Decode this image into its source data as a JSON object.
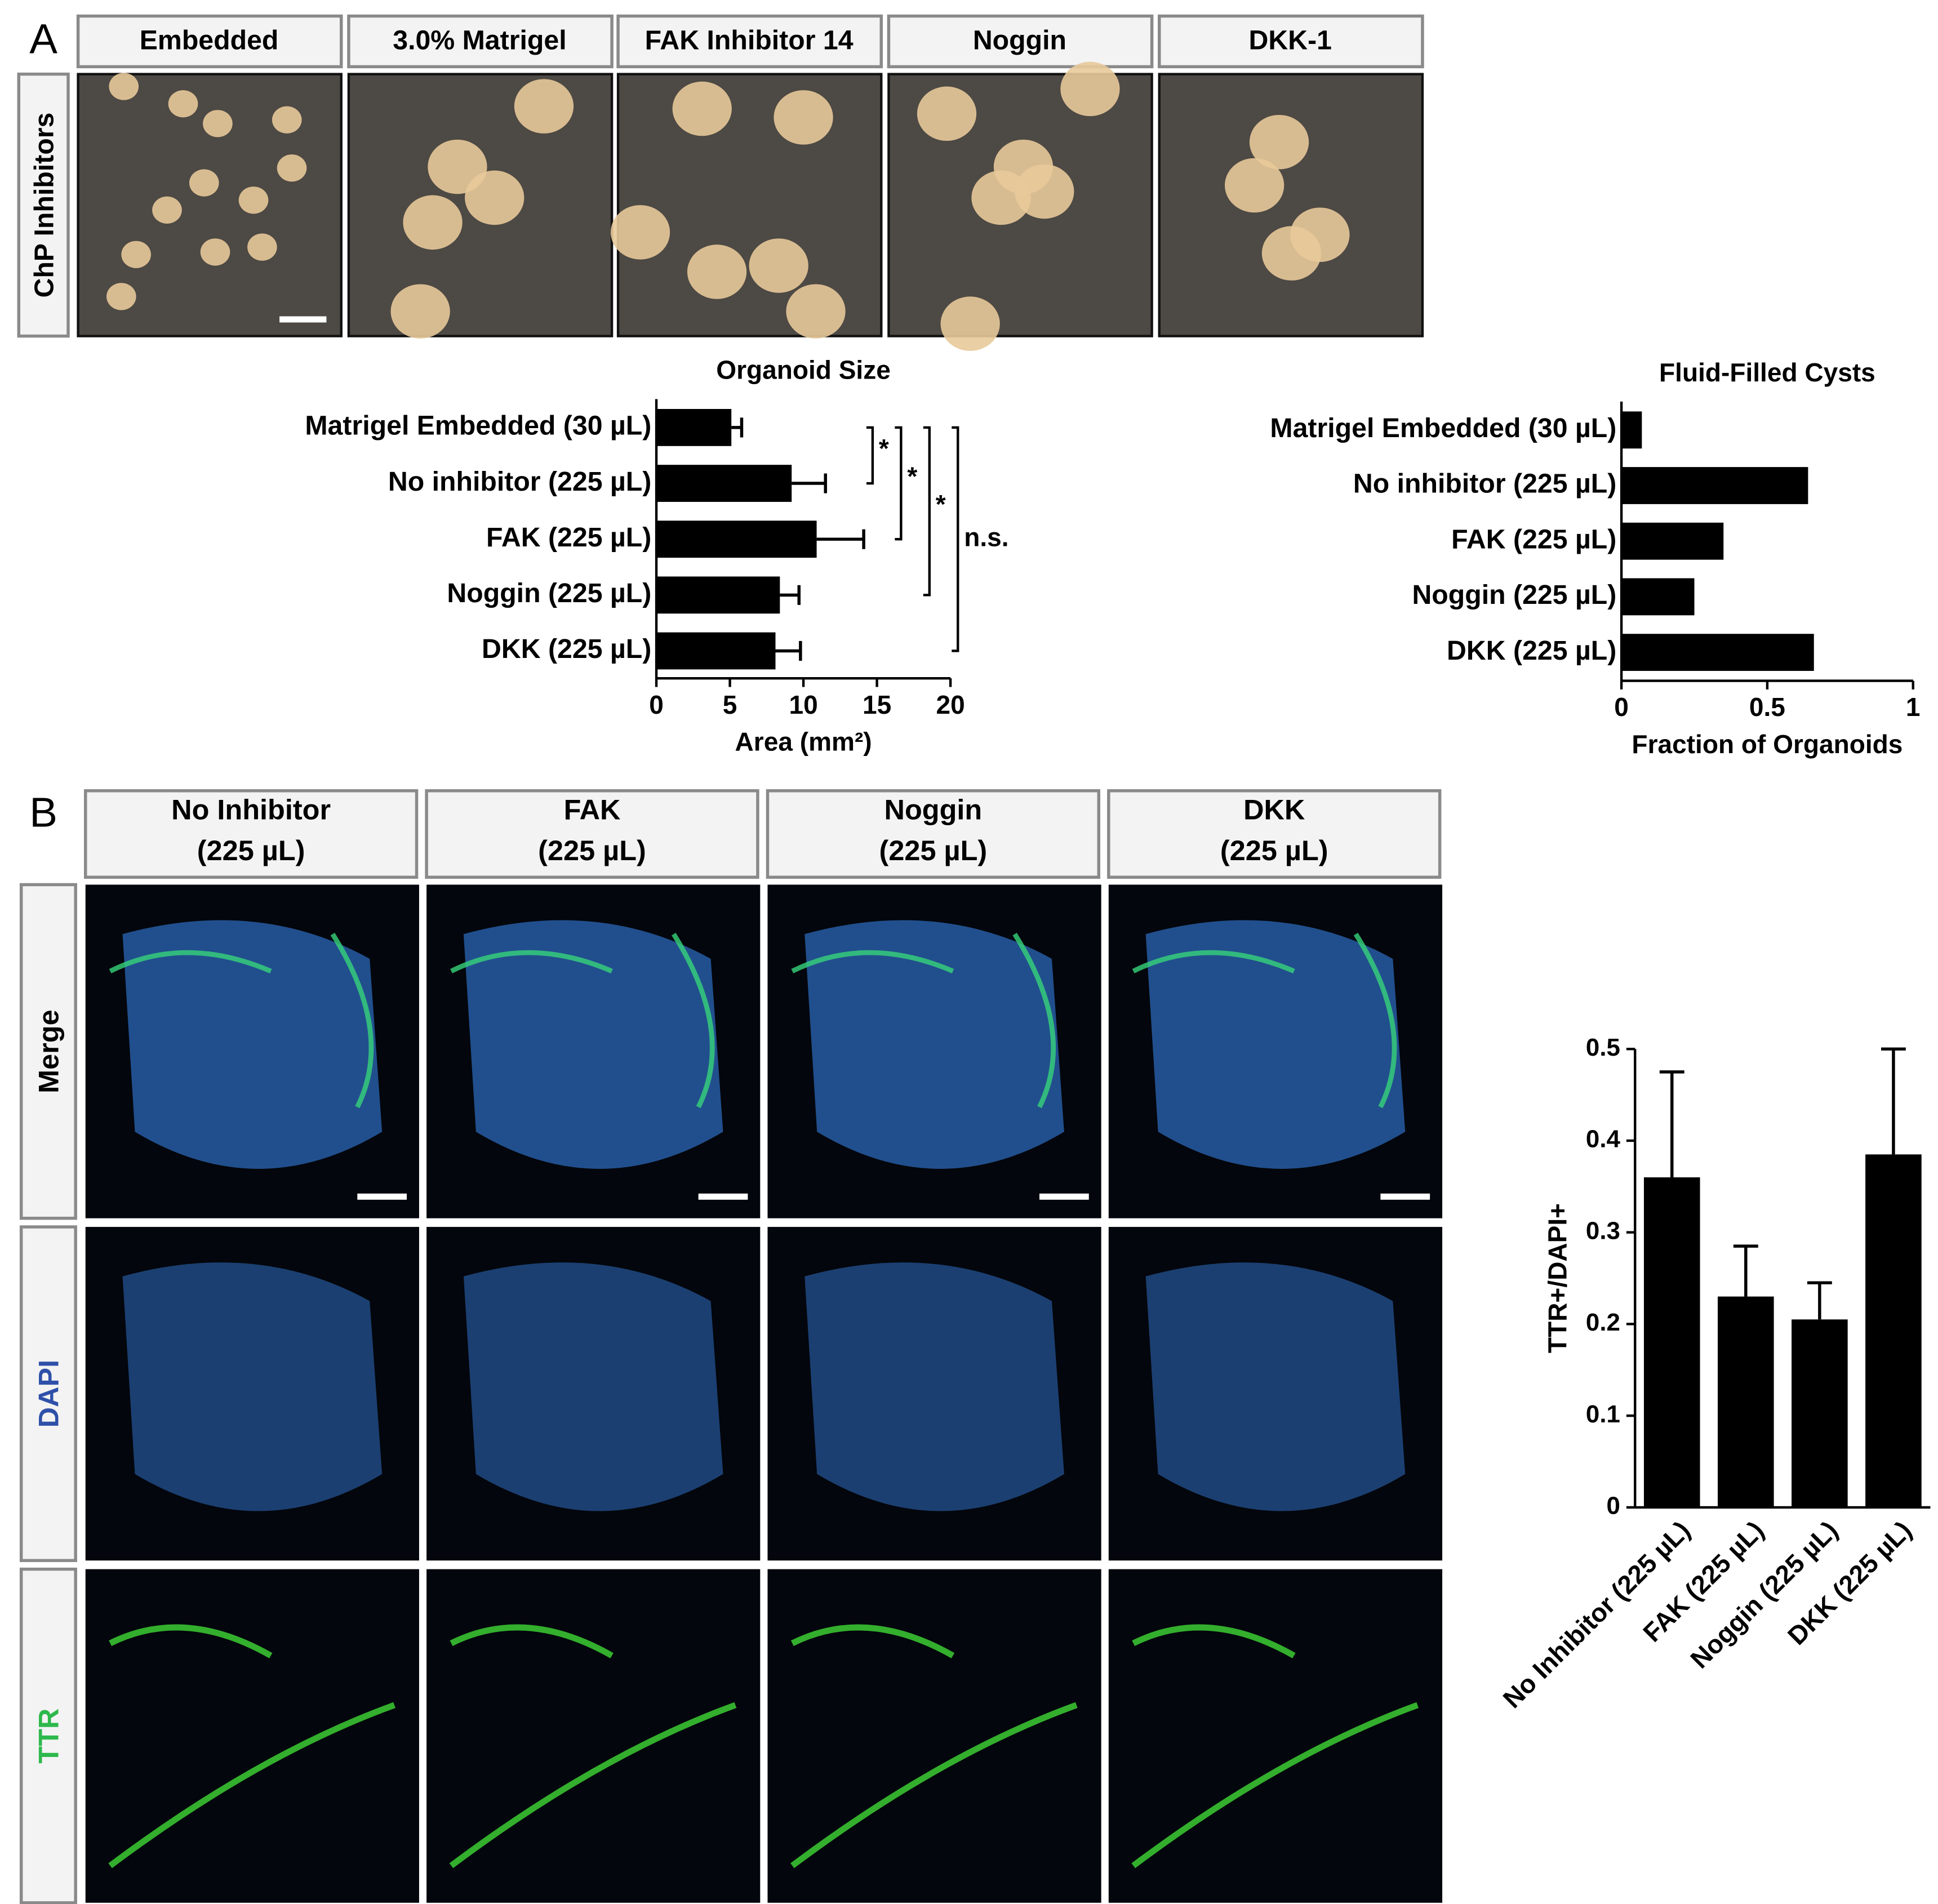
{
  "figure": {
    "panel_a": {
      "label": "A",
      "columns": [
        "Embedded",
        "3.0% Matrigel",
        "FAK Inhibitor 14",
        "Noggin",
        "DKK-1"
      ],
      "row_label": "ChP Inhibitors"
    },
    "panel_b": {
      "label": "B",
      "columns": [
        [
          "No Inhibitor",
          "(225 µL)"
        ],
        [
          "FAK",
          "(225 µL)"
        ],
        [
          "Noggin",
          "(225 µL)"
        ],
        [
          "DKK",
          "(225 µL)"
        ]
      ],
      "rows": [
        "Merge",
        "DAPI",
        "TTR"
      ]
    }
  },
  "chart_data": [
    {
      "type": "barh",
      "title": "Organoid Size",
      "xlabel": "Area (mm²)",
      "categories": [
        "Matrigel Embedded (30 µL)",
        "No inhibitor (225 µL)",
        "FAK (225 µL)",
        "Noggin (225 µL)",
        "DKK (225 µL)"
      ],
      "values": [
        5.1,
        9.2,
        10.9,
        8.4,
        8.1
      ],
      "errors": [
        0.7,
        2.3,
        3.2,
        1.3,
        1.7
      ],
      "color": "#000000",
      "xlim": [
        0,
        20
      ],
      "xticks": [
        0,
        5,
        10,
        15,
        20
      ],
      "comparisons": [
        {
          "from": 0,
          "to": 1,
          "label": "*"
        },
        {
          "from": 0,
          "to": 2,
          "label": "*"
        },
        {
          "from": 0,
          "to": 3,
          "label": "*"
        },
        {
          "from": 0,
          "to": 4,
          "label": "n.s."
        }
      ]
    },
    {
      "type": "barh",
      "title": "Fluid-Filled Cysts",
      "xlabel": "Fraction of Organoids",
      "categories": [
        "Matrigel Embedded (30 µL)",
        "No inhibitor (225 µL)",
        "FAK (225 µL)",
        "Noggin (225 µL)",
        "DKK (225 µL)"
      ],
      "values": [
        0.07,
        0.64,
        0.35,
        0.25,
        0.66
      ],
      "color": "#000000",
      "xlim": [
        0,
        1
      ],
      "xticks": [
        0,
        0.5,
        1
      ]
    },
    {
      "type": "bar",
      "ylabel": "TTR+/DAPI+",
      "categories": [
        "No Inhibitor (225 µL)",
        "FAK (225 µL)",
        "Noggin (225 µL)",
        "DKK (225 µL)"
      ],
      "values": [
        0.36,
        0.23,
        0.205,
        0.385
      ],
      "errors": [
        0.115,
        0.055,
        0.04,
        0.115
      ],
      "color": "#000000",
      "ylim": [
        0,
        0.5
      ],
      "yticks": [
        0,
        0.1,
        0.2,
        0.3,
        0.4,
        0.5
      ]
    }
  ]
}
